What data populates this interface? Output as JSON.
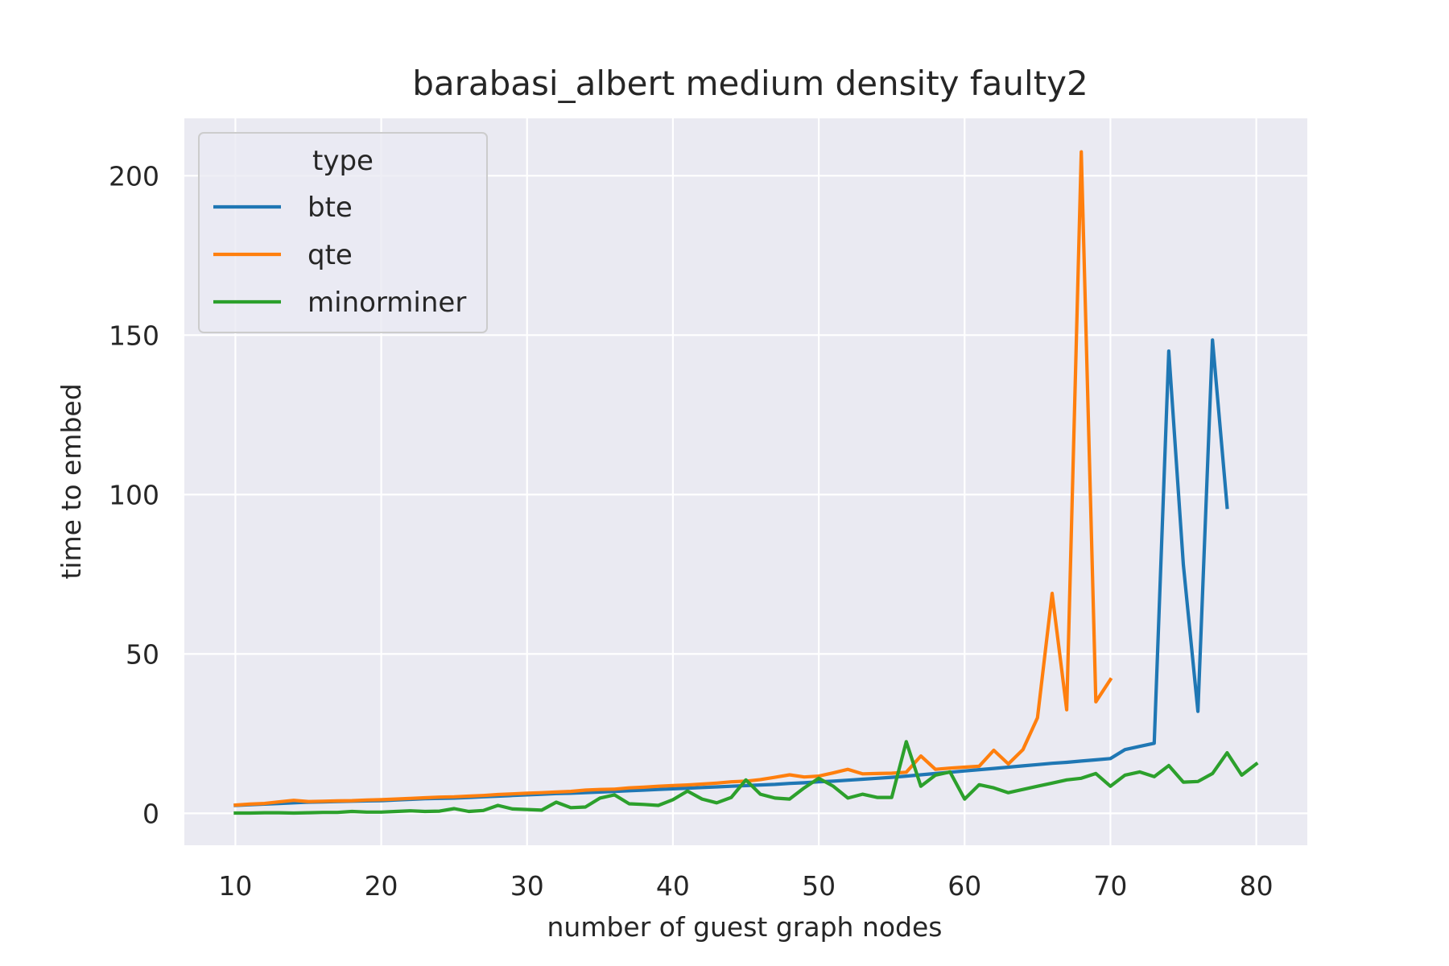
{
  "chart_data": {
    "type": "line",
    "title": "barabasi_albert medium density faulty2",
    "xlabel": "number of guest graph nodes",
    "ylabel": "time to embed",
    "xlim": [
      6.5,
      83.5
    ],
    "ylim": [
      -10,
      218
    ],
    "xticks": [
      10,
      20,
      30,
      40,
      50,
      60,
      70,
      80
    ],
    "yticks": [
      0,
      50,
      100,
      150,
      200
    ],
    "grid": true,
    "legend": {
      "title": "type",
      "placement": "top-left"
    },
    "series": [
      {
        "name": "bte",
        "color": "#1f77b4",
        "x": [
          10,
          11,
          12,
          13,
          14,
          15,
          16,
          17,
          18,
          19,
          20,
          21,
          22,
          23,
          24,
          25,
          26,
          27,
          28,
          29,
          30,
          31,
          32,
          33,
          34,
          35,
          36,
          37,
          38,
          39,
          40,
          41,
          42,
          43,
          44,
          45,
          46,
          47,
          48,
          49,
          50,
          51,
          52,
          53,
          54,
          55,
          56,
          57,
          58,
          59,
          60,
          61,
          62,
          63,
          64,
          65,
          66,
          67,
          68,
          69,
          70,
          71,
          72,
          73,
          74,
          75,
          76,
          77,
          78
        ],
        "y": [
          2.5,
          2.7,
          2.9,
          3.1,
          3.3,
          3.5,
          3.6,
          3.7,
          3.8,
          3.9,
          4.0,
          4.2,
          4.4,
          4.6,
          4.7,
          4.8,
          5.0,
          5.2,
          5.4,
          5.6,
          5.8,
          6.0,
          6.2,
          6.3,
          6.5,
          6.7,
          6.9,
          7.1,
          7.3,
          7.5,
          7.7,
          7.9,
          8.1,
          8.3,
          8.5,
          8.7,
          8.9,
          9.1,
          9.4,
          9.6,
          9.9,
          10.1,
          10.4,
          10.7,
          11.0,
          11.3,
          11.7,
          12.1,
          12.5,
          12.9,
          13.3,
          13.7,
          14.1,
          14.5,
          14.9,
          15.3,
          15.7,
          16.0,
          16.4,
          16.8,
          17.2,
          20.0,
          21.0,
          22.0,
          145.0,
          78.0,
          32.0,
          148.5,
          96.0
        ]
      },
      {
        "name": "qte",
        "color": "#ff7f0e",
        "x": [
          10,
          11,
          12,
          13,
          14,
          15,
          16,
          17,
          18,
          19,
          20,
          21,
          22,
          23,
          24,
          25,
          26,
          27,
          28,
          29,
          30,
          31,
          32,
          33,
          34,
          35,
          36,
          37,
          38,
          39,
          40,
          41,
          42,
          43,
          44,
          45,
          46,
          47,
          48,
          49,
          50,
          51,
          52,
          53,
          54,
          55,
          56,
          57,
          58,
          59,
          60,
          61,
          62,
          63,
          64,
          65,
          66,
          67,
          68,
          69,
          70
        ],
        "y": [
          2.6,
          2.9,
          3.1,
          3.6,
          4.1,
          3.7,
          3.8,
          3.9,
          4.0,
          4.2,
          4.3,
          4.5,
          4.7,
          4.9,
          5.1,
          5.2,
          5.4,
          5.6,
          5.9,
          6.1,
          6.3,
          6.5,
          6.7,
          6.9,
          7.3,
          7.5,
          7.6,
          8.0,
          8.2,
          8.5,
          8.7,
          8.9,
          9.2,
          9.5,
          9.9,
          10.1,
          10.6,
          11.3,
          12.1,
          11.4,
          11.7,
          12.7,
          13.8,
          12.4,
          12.5,
          12.6,
          12.9,
          18.0,
          13.8,
          14.2,
          14.5,
          14.8,
          19.8,
          15.5,
          20.0,
          30.0,
          69.0,
          32.5,
          207.5,
          35.0,
          42.0
        ]
      },
      {
        "name": "minorminer",
        "color": "#2ca02c",
        "x": [
          10,
          11,
          12,
          13,
          14,
          15,
          16,
          17,
          18,
          19,
          20,
          21,
          22,
          23,
          24,
          25,
          26,
          27,
          28,
          29,
          30,
          31,
          32,
          33,
          34,
          35,
          36,
          37,
          38,
          39,
          40,
          41,
          42,
          43,
          44,
          45,
          46,
          47,
          48,
          49,
          50,
          51,
          52,
          53,
          54,
          55,
          56,
          57,
          58,
          59,
          60,
          61,
          62,
          63,
          64,
          65,
          66,
          67,
          68,
          69,
          70,
          71,
          72,
          73,
          74,
          75,
          76,
          77,
          78,
          79,
          80
        ],
        "y": [
          0.1,
          0.1,
          0.2,
          0.2,
          0.1,
          0.2,
          0.3,
          0.3,
          0.6,
          0.4,
          0.4,
          0.6,
          0.8,
          0.6,
          0.7,
          1.5,
          0.6,
          0.9,
          2.5,
          1.4,
          1.2,
          1.0,
          3.5,
          1.8,
          2.0,
          4.8,
          5.8,
          3.0,
          2.8,
          2.5,
          4.3,
          7.0,
          4.5,
          3.3,
          5.0,
          10.5,
          6.0,
          4.8,
          4.5,
          8.0,
          11.0,
          8.5,
          4.8,
          6.0,
          5.0,
          5.0,
          22.5,
          8.5,
          12.0,
          13.0,
          4.5,
          9.0,
          8.0,
          6.5,
          7.5,
          8.5,
          9.5,
          10.5,
          11.0,
          12.5,
          8.5,
          12.0,
          13.0,
          11.5,
          15.0,
          9.8,
          10.0,
          12.5,
          19.0,
          12.0,
          15.5
        ]
      }
    ]
  }
}
